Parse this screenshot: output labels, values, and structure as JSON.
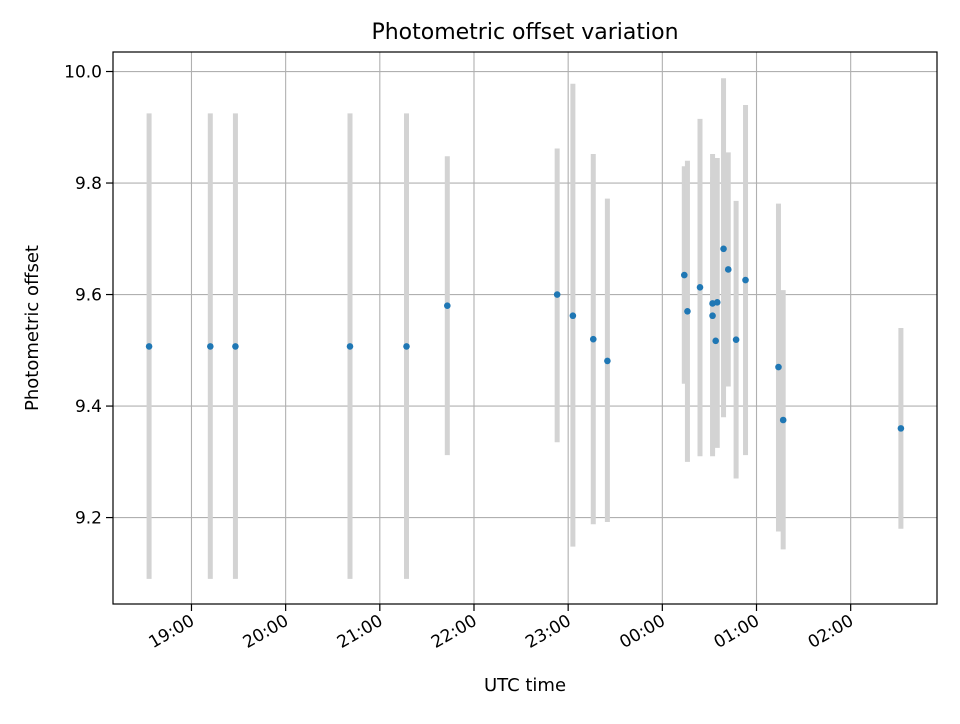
{
  "chart_data": {
    "type": "scatter",
    "title": "Photometric offset variation",
    "xlabel": "UTC time",
    "ylabel": "Photometric offset",
    "x_axis_kind": "time",
    "xlim": [
      "18:10",
      "02:55"
    ],
    "ylim": [
      9.045,
      10.035
    ],
    "x_ticks": [
      "19:00",
      "20:00",
      "21:00",
      "22:00",
      "23:00",
      "00:00",
      "01:00",
      "02:00"
    ],
    "y_ticks": [
      "9.2",
      "9.4",
      "9.6",
      "9.8",
      "10.0"
    ],
    "grid": true,
    "marker_color": "#1f77b4",
    "errorbar_color": "#d3d3d3",
    "points": [
      {
        "t": "18:33",
        "y": 9.507,
        "ylow": 9.09,
        "yhigh": 9.925
      },
      {
        "t": "19:12",
        "y": 9.507,
        "ylow": 9.09,
        "yhigh": 9.925
      },
      {
        "t": "19:28",
        "y": 9.507,
        "ylow": 9.09,
        "yhigh": 9.925
      },
      {
        "t": "20:41",
        "y": 9.507,
        "ylow": 9.09,
        "yhigh": 9.925
      },
      {
        "t": "21:17",
        "y": 9.507,
        "ylow": 9.09,
        "yhigh": 9.925
      },
      {
        "t": "21:43",
        "y": 9.58,
        "ylow": 9.312,
        "yhigh": 9.848
      },
      {
        "t": "22:53",
        "y": 9.6,
        "ylow": 9.335,
        "yhigh": 9.862
      },
      {
        "t": "23:03",
        "y": 9.562,
        "ylow": 9.148,
        "yhigh": 9.978
      },
      {
        "t": "23:16",
        "y": 9.52,
        "ylow": 9.188,
        "yhigh": 9.852
      },
      {
        "t": "23:25",
        "y": 9.481,
        "ylow": 9.192,
        "yhigh": 9.772
      },
      {
        "t": "00:14",
        "y": 9.635,
        "ylow": 9.44,
        "yhigh": 9.83
      },
      {
        "t": "00:16",
        "y": 9.57,
        "ylow": 9.3,
        "yhigh": 9.84
      },
      {
        "t": "00:24",
        "y": 9.613,
        "ylow": 9.31,
        "yhigh": 9.915
      },
      {
        "t": "00:32",
        "y": 9.584,
        "ylow": 9.315,
        "yhigh": 9.852
      },
      {
        "t": "00:32",
        "y": 9.562,
        "ylow": 9.31,
        "yhigh": 9.81
      },
      {
        "t": "00:34",
        "y": 9.517,
        "ylow": 9.33,
        "yhigh": 9.845
      },
      {
        "t": "00:35",
        "y": 9.586,
        "ylow": 9.325,
        "yhigh": 9.845
      },
      {
        "t": "00:39",
        "y": 9.682,
        "ylow": 9.38,
        "yhigh": 9.988
      },
      {
        "t": "00:42",
        "y": 9.645,
        "ylow": 9.435,
        "yhigh": 9.855
      },
      {
        "t": "00:47",
        "y": 9.519,
        "ylow": 9.27,
        "yhigh": 9.768
      },
      {
        "t": "00:53",
        "y": 9.626,
        "ylow": 9.312,
        "yhigh": 9.94
      },
      {
        "t": "01:14",
        "y": 9.47,
        "ylow": 9.175,
        "yhigh": 9.763
      },
      {
        "t": "01:17",
        "y": 9.375,
        "ylow": 9.143,
        "yhigh": 9.608
      },
      {
        "t": "02:32",
        "y": 9.36,
        "ylow": 9.18,
        "yhigh": 9.54
      }
    ]
  }
}
